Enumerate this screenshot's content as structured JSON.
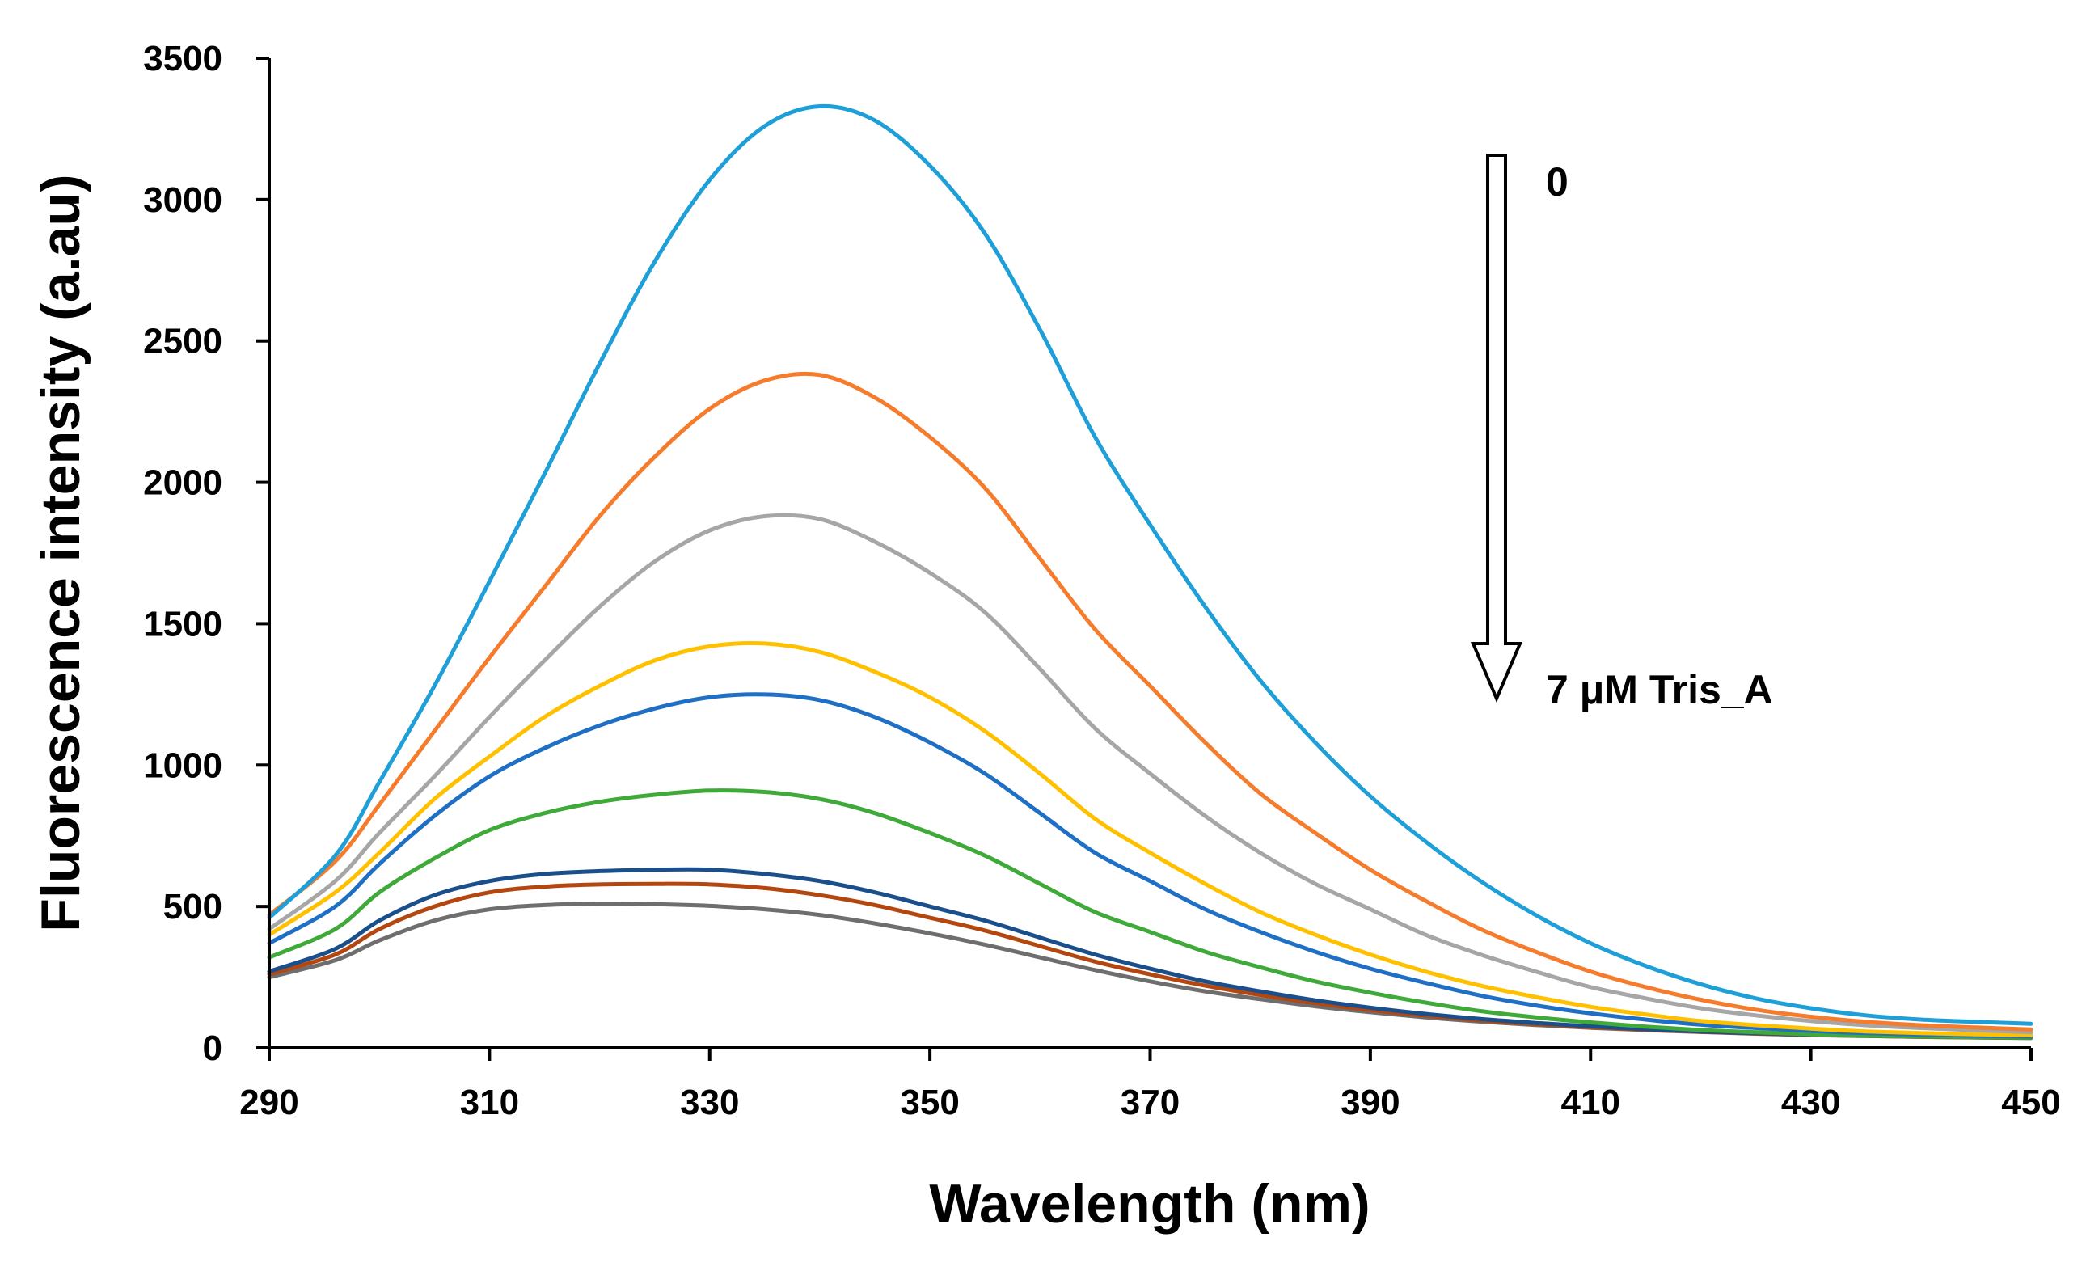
{
  "chart_data": {
    "type": "line",
    "xlabel": "Wavelength (nm)",
    "ylabel": "Fluorescence intensity (a.au)",
    "xlim": [
      290,
      450
    ],
    "ylim": [
      0,
      3500
    ],
    "xticks": [
      "290",
      "310",
      "330",
      "350",
      "370",
      "390",
      "410",
      "430",
      "450"
    ],
    "yticks": [
      "0",
      "500",
      "1000",
      "1500",
      "2000",
      "2500",
      "3000",
      "3500"
    ],
    "grid": false,
    "legend": "none",
    "annotation": {
      "top_label": "0",
      "bottom_label": "7 μM Tris_A",
      "arrow": "down"
    },
    "series": [
      {
        "color": "#1F9FD8",
        "x": [
          290,
          296,
          300,
          305,
          310,
          315,
          320,
          325,
          330,
          335,
          340,
          345,
          350,
          355,
          360,
          365,
          370,
          375,
          380,
          385,
          390,
          395,
          400,
          405,
          410,
          415,
          420,
          425,
          430,
          435,
          440,
          445,
          450
        ],
        "y": [
          460,
          680,
          940,
          1280,
          1650,
          2030,
          2420,
          2780,
          3070,
          3260,
          3330,
          3280,
          3120,
          2880,
          2540,
          2160,
          1850,
          1560,
          1300,
          1080,
          890,
          730,
          590,
          470,
          370,
          290,
          225,
          175,
          140,
          115,
          100,
          92,
          85
        ]
      },
      {
        "color": "#F47C2C",
        "x": [
          290,
          296,
          300,
          305,
          310,
          315,
          320,
          325,
          330,
          335,
          340,
          345,
          350,
          355,
          360,
          365,
          370,
          375,
          380,
          385,
          390,
          395,
          400,
          405,
          410,
          415,
          420,
          425,
          430,
          435,
          440,
          445,
          450
        ],
        "y": [
          470,
          660,
          860,
          1120,
          1380,
          1630,
          1880,
          2090,
          2260,
          2360,
          2380,
          2300,
          2160,
          1980,
          1730,
          1480,
          1280,
          1080,
          900,
          760,
          630,
          520,
          420,
          340,
          270,
          215,
          170,
          135,
          110,
          92,
          80,
          72,
          65
        ]
      },
      {
        "color": "#A6A6A6",
        "x": [
          290,
          296,
          300,
          305,
          310,
          315,
          320,
          325,
          330,
          335,
          340,
          345,
          350,
          355,
          360,
          365,
          370,
          375,
          380,
          385,
          390,
          395,
          400,
          405,
          410,
          415,
          420,
          425,
          430,
          435,
          440,
          445,
          450
        ],
        "y": [
          420,
          590,
          760,
          960,
          1170,
          1370,
          1560,
          1720,
          1830,
          1880,
          1870,
          1790,
          1680,
          1540,
          1340,
          1130,
          970,
          820,
          690,
          580,
          490,
          400,
          330,
          270,
          215,
          175,
          140,
          115,
          95,
          80,
          70,
          62,
          55
        ]
      },
      {
        "color": "#FFC000",
        "x": [
          290,
          296,
          300,
          305,
          310,
          315,
          320,
          325,
          330,
          335,
          340,
          345,
          350,
          355,
          360,
          365,
          370,
          375,
          380,
          385,
          390,
          395,
          400,
          405,
          410,
          415,
          420,
          425,
          430,
          435,
          440,
          445,
          450
        ],
        "y": [
          400,
          550,
          690,
          880,
          1030,
          1170,
          1280,
          1370,
          1420,
          1430,
          1400,
          1330,
          1240,
          1120,
          970,
          810,
          690,
          580,
          480,
          400,
          330,
          270,
          220,
          180,
          145,
          118,
          95,
          80,
          68,
          58,
          52,
          48,
          45
        ]
      },
      {
        "color": "#1F6FC4",
        "x": [
          290,
          296,
          300,
          305,
          310,
          315,
          320,
          325,
          330,
          335,
          340,
          345,
          350,
          355,
          360,
          365,
          370,
          375,
          380,
          385,
          390,
          395,
          400,
          405,
          410,
          415,
          420,
          425,
          430,
          435,
          440,
          445,
          450
        ],
        "y": [
          370,
          500,
          650,
          820,
          960,
          1060,
          1140,
          1200,
          1240,
          1250,
          1230,
          1170,
          1080,
          970,
          830,
          690,
          590,
          490,
          410,
          340,
          280,
          230,
          185,
          150,
          122,
          100,
          82,
          70,
          60,
          52,
          47,
          43,
          40
        ]
      },
      {
        "color": "#3FAA3A",
        "x": [
          290,
          296,
          300,
          305,
          310,
          315,
          320,
          325,
          330,
          335,
          340,
          345,
          350,
          355,
          360,
          365,
          370,
          375,
          380,
          385,
          390,
          395,
          400,
          405,
          410,
          415,
          420,
          425,
          430,
          435,
          440,
          445,
          450
        ],
        "y": [
          320,
          420,
          550,
          670,
          770,
          830,
          870,
          895,
          910,
          905,
          880,
          830,
          760,
          680,
          580,
          480,
          410,
          340,
          285,
          235,
          195,
          160,
          130,
          108,
          90,
          75,
          63,
          55,
          48,
          43,
          40,
          38,
          36
        ]
      },
      {
        "color": "#1A4F8B",
        "x": [
          290,
          296,
          300,
          305,
          310,
          315,
          320,
          325,
          330,
          335,
          340,
          345,
          350,
          355,
          360,
          365,
          370,
          375,
          380,
          385,
          390,
          395,
          400,
          405,
          410,
          415,
          420,
          425,
          430,
          435,
          440,
          445,
          450
        ],
        "y": [
          270,
          350,
          450,
          540,
          590,
          615,
          625,
          630,
          630,
          615,
          590,
          550,
          500,
          450,
          390,
          330,
          280,
          235,
          200,
          168,
          142,
          120,
          102,
          88,
          76,
          66,
          58,
          52,
          47,
          43,
          40,
          38,
          36
        ]
      },
      {
        "color": "#B3470F",
        "x": [
          290,
          296,
          300,
          305,
          310,
          315,
          320,
          325,
          330,
          335,
          340,
          345,
          350,
          355,
          360,
          365,
          370,
          375,
          380,
          385,
          390,
          395,
          400,
          405,
          410,
          415,
          420,
          425,
          430,
          435,
          440,
          445,
          450
        ],
        "y": [
          260,
          330,
          420,
          500,
          550,
          570,
          578,
          580,
          578,
          565,
          540,
          505,
          460,
          415,
          360,
          305,
          260,
          220,
          187,
          158,
          134,
          114,
          97,
          84,
          73,
          64,
          57,
          51,
          46,
          42,
          39,
          37,
          35
        ]
      },
      {
        "color": "#6E6E6E",
        "x": [
          290,
          296,
          300,
          305,
          310,
          315,
          320,
          325,
          330,
          335,
          340,
          345,
          350,
          355,
          360,
          365,
          370,
          375,
          380,
          385,
          390,
          395,
          400,
          405,
          410,
          415,
          420,
          425,
          430,
          435,
          440,
          445,
          450
        ],
        "y": [
          250,
          310,
          380,
          450,
          490,
          505,
          510,
          508,
          502,
          490,
          470,
          440,
          405,
          365,
          320,
          275,
          235,
          200,
          172,
          147,
          126,
          108,
          93,
          81,
          71,
          63,
          56,
          50,
          45,
          42,
          39,
          37,
          35
        ]
      }
    ]
  }
}
